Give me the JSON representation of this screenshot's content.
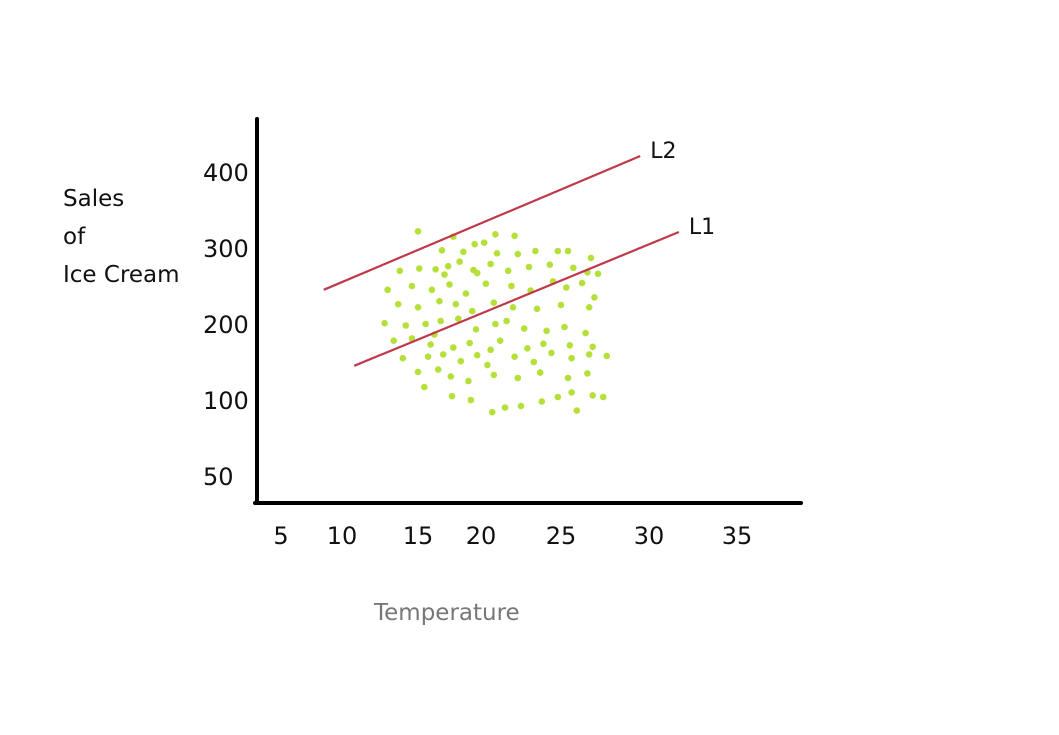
{
  "chart_data": {
    "type": "scatter",
    "title": "",
    "xlabel": "Temperature",
    "ylabel_lines": [
      "Sales",
      "of",
      "Ice Cream"
    ],
    "x_ticks": [
      "5",
      "10",
      "15",
      "20",
      "25",
      "30",
      "35"
    ],
    "y_ticks": [
      "400",
      "300",
      "200",
      "100",
      "50"
    ],
    "grid": false,
    "colors": {
      "points": "#b5e03a",
      "lines": "#c0394b",
      "axis": "#000000",
      "xlabel": "#777777"
    },
    "lines": [
      {
        "name": "L2",
        "start": [
          8.5,
          245
        ],
        "end": [
          29.5,
          421
        ]
      },
      {
        "name": "L1",
        "start": [
          10.8,
          145
        ],
        "end": [
          31.7,
          321
        ]
      }
    ],
    "points": [
      [
        15.0,
        322
      ],
      [
        17.8,
        315
      ],
      [
        20.9,
        318
      ],
      [
        22.1,
        316
      ],
      [
        19.5,
        305
      ],
      [
        20.2,
        307
      ],
      [
        16.9,
        297
      ],
      [
        18.6,
        295
      ],
      [
        21.0,
        293
      ],
      [
        22.3,
        292
      ],
      [
        23.4,
        296
      ],
      [
        24.8,
        296
      ],
      [
        25.4,
        296
      ],
      [
        26.7,
        287
      ],
      [
        13.8,
        270
      ],
      [
        15.1,
        273
      ],
      [
        16.4,
        272
      ],
      [
        17.4,
        276
      ],
      [
        18.3,
        282
      ],
      [
        19.4,
        271
      ],
      [
        20.6,
        279
      ],
      [
        21.7,
        270
      ],
      [
        23.0,
        275
      ],
      [
        24.3,
        278
      ],
      [
        25.7,
        274
      ],
      [
        26.5,
        268
      ],
      [
        27.1,
        266
      ],
      [
        17.1,
        265
      ],
      [
        19.7,
        267
      ],
      [
        13.0,
        245
      ],
      [
        14.6,
        250
      ],
      [
        16.1,
        245
      ],
      [
        17.5,
        252
      ],
      [
        18.8,
        240
      ],
      [
        20.3,
        253
      ],
      [
        21.9,
        250
      ],
      [
        23.1,
        244
      ],
      [
        24.5,
        256
      ],
      [
        25.3,
        248
      ],
      [
        26.2,
        254
      ],
      [
        26.9,
        235
      ],
      [
        13.7,
        226
      ],
      [
        15.0,
        222
      ],
      [
        16.7,
        230
      ],
      [
        18.0,
        226
      ],
      [
        19.3,
        217
      ],
      [
        20.8,
        228
      ],
      [
        22.0,
        222
      ],
      [
        23.5,
        220
      ],
      [
        25.0,
        225
      ],
      [
        26.6,
        222
      ],
      [
        12.8,
        201
      ],
      [
        14.2,
        198
      ],
      [
        15.6,
        200
      ],
      [
        16.8,
        204
      ],
      [
        18.2,
        207
      ],
      [
        19.6,
        193
      ],
      [
        20.9,
        200
      ],
      [
        21.6,
        204
      ],
      [
        22.7,
        194
      ],
      [
        24.1,
        191
      ],
      [
        25.2,
        196
      ],
      [
        26.4,
        188
      ],
      [
        16.3,
        186
      ],
      [
        13.4,
        178
      ],
      [
        14.6,
        181
      ],
      [
        16.0,
        173
      ],
      [
        17.8,
        169
      ],
      [
        19.1,
        175
      ],
      [
        20.6,
        166
      ],
      [
        21.2,
        178
      ],
      [
        22.9,
        168
      ],
      [
        23.9,
        174
      ],
      [
        25.5,
        172
      ],
      [
        26.8,
        170
      ],
      [
        14.0,
        155
      ],
      [
        15.8,
        157
      ],
      [
        17.0,
        160
      ],
      [
        18.4,
        151
      ],
      [
        19.7,
        159
      ],
      [
        20.4,
        146
      ],
      [
        22.1,
        157
      ],
      [
        23.3,
        150
      ],
      [
        24.4,
        162
      ],
      [
        25.6,
        155
      ],
      [
        26.6,
        160
      ],
      [
        27.6,
        158
      ],
      [
        15.0,
        137
      ],
      [
        16.6,
        140
      ],
      [
        17.6,
        131
      ],
      [
        19.0,
        125
      ],
      [
        20.8,
        133
      ],
      [
        22.3,
        129
      ],
      [
        23.7,
        136
      ],
      [
        25.4,
        129
      ],
      [
        26.5,
        135
      ],
      [
        15.5,
        117
      ],
      [
        17.7,
        105
      ],
      [
        19.2,
        100
      ],
      [
        20.7,
        92
      ],
      [
        21.5,
        95
      ],
      [
        22.5,
        96
      ],
      [
        23.8,
        99
      ],
      [
        24.8,
        104
      ],
      [
        25.6,
        110
      ],
      [
        26.8,
        106
      ],
      [
        27.4,
        104
      ],
      [
        25.9,
        93
      ]
    ]
  }
}
